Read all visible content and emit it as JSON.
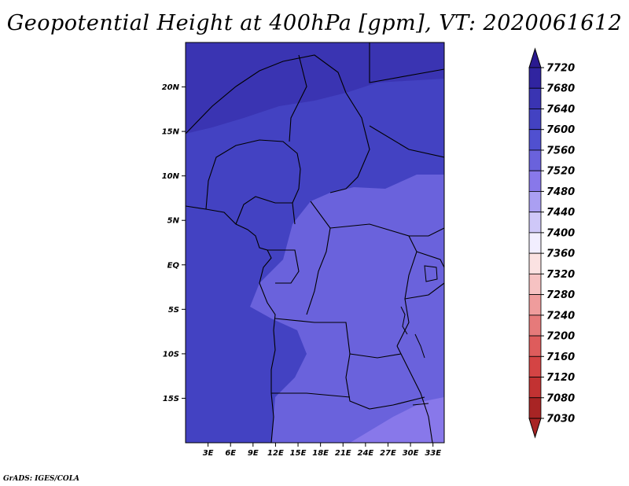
{
  "title": "Geopotential Height at 400hPa [gpm], VT: 2020061612",
  "credit": "GrADS: IGES/COLA",
  "map": {
    "lon_range": [
      0,
      34.5
    ],
    "lat_range": [
      -20,
      25
    ],
    "lat_ticks": [
      {
        "value": 20,
        "label": "20N"
      },
      {
        "value": 15,
        "label": "15N"
      },
      {
        "value": 10,
        "label": "10N"
      },
      {
        "value": 5,
        "label": "5N"
      },
      {
        "value": 0,
        "label": "EQ"
      },
      {
        "value": -5,
        "label": "5S"
      },
      {
        "value": -10,
        "label": "10S"
      },
      {
        "value": -15,
        "label": "15S"
      }
    ],
    "lon_ticks": [
      {
        "value": 3,
        "label": "3E"
      },
      {
        "value": 6,
        "label": "6E"
      },
      {
        "value": 9,
        "label": "9E"
      },
      {
        "value": 12,
        "label": "12E"
      },
      {
        "value": 15,
        "label": "15E"
      },
      {
        "value": 18,
        "label": "18E"
      },
      {
        "value": 21,
        "label": "21E"
      },
      {
        "value": 24,
        "label": "24E"
      },
      {
        "value": 27,
        "label": "27E"
      },
      {
        "value": 30,
        "label": "30E"
      },
      {
        "value": 33,
        "label": "33E"
      }
    ]
  },
  "colorbar": {
    "levels": [
      {
        "label": "7720",
        "color": "#2a1a90"
      },
      {
        "label": "7680",
        "color": "#3024a0"
      },
      {
        "label": "7640",
        "color": "#3a34b2"
      },
      {
        "label": "7600",
        "color": "#4342c2"
      },
      {
        "label": "7560",
        "color": "#5050d0"
      },
      {
        "label": "7520",
        "color": "#6a62dc"
      },
      {
        "label": "7480",
        "color": "#8878ea"
      },
      {
        "label": "7440",
        "color": "#aa9ff2"
      },
      {
        "label": "7400",
        "color": "#cfc8f8"
      },
      {
        "label": "7360",
        "color": "#f2eeff"
      },
      {
        "label": "7320",
        "color": "#fbe2e2"
      },
      {
        "label": "7280",
        "color": "#f6c2c2"
      },
      {
        "label": "7240",
        "color": "#ef9c9c"
      },
      {
        "label": "7200",
        "color": "#e67a7a"
      },
      {
        "label": "7160",
        "color": "#de5c5c"
      },
      {
        "label": "7120",
        "color": "#d44444"
      },
      {
        "label": "7080",
        "color": "#c23232"
      },
      {
        "label": "7030",
        "color": "#a82424"
      }
    ]
  }
}
